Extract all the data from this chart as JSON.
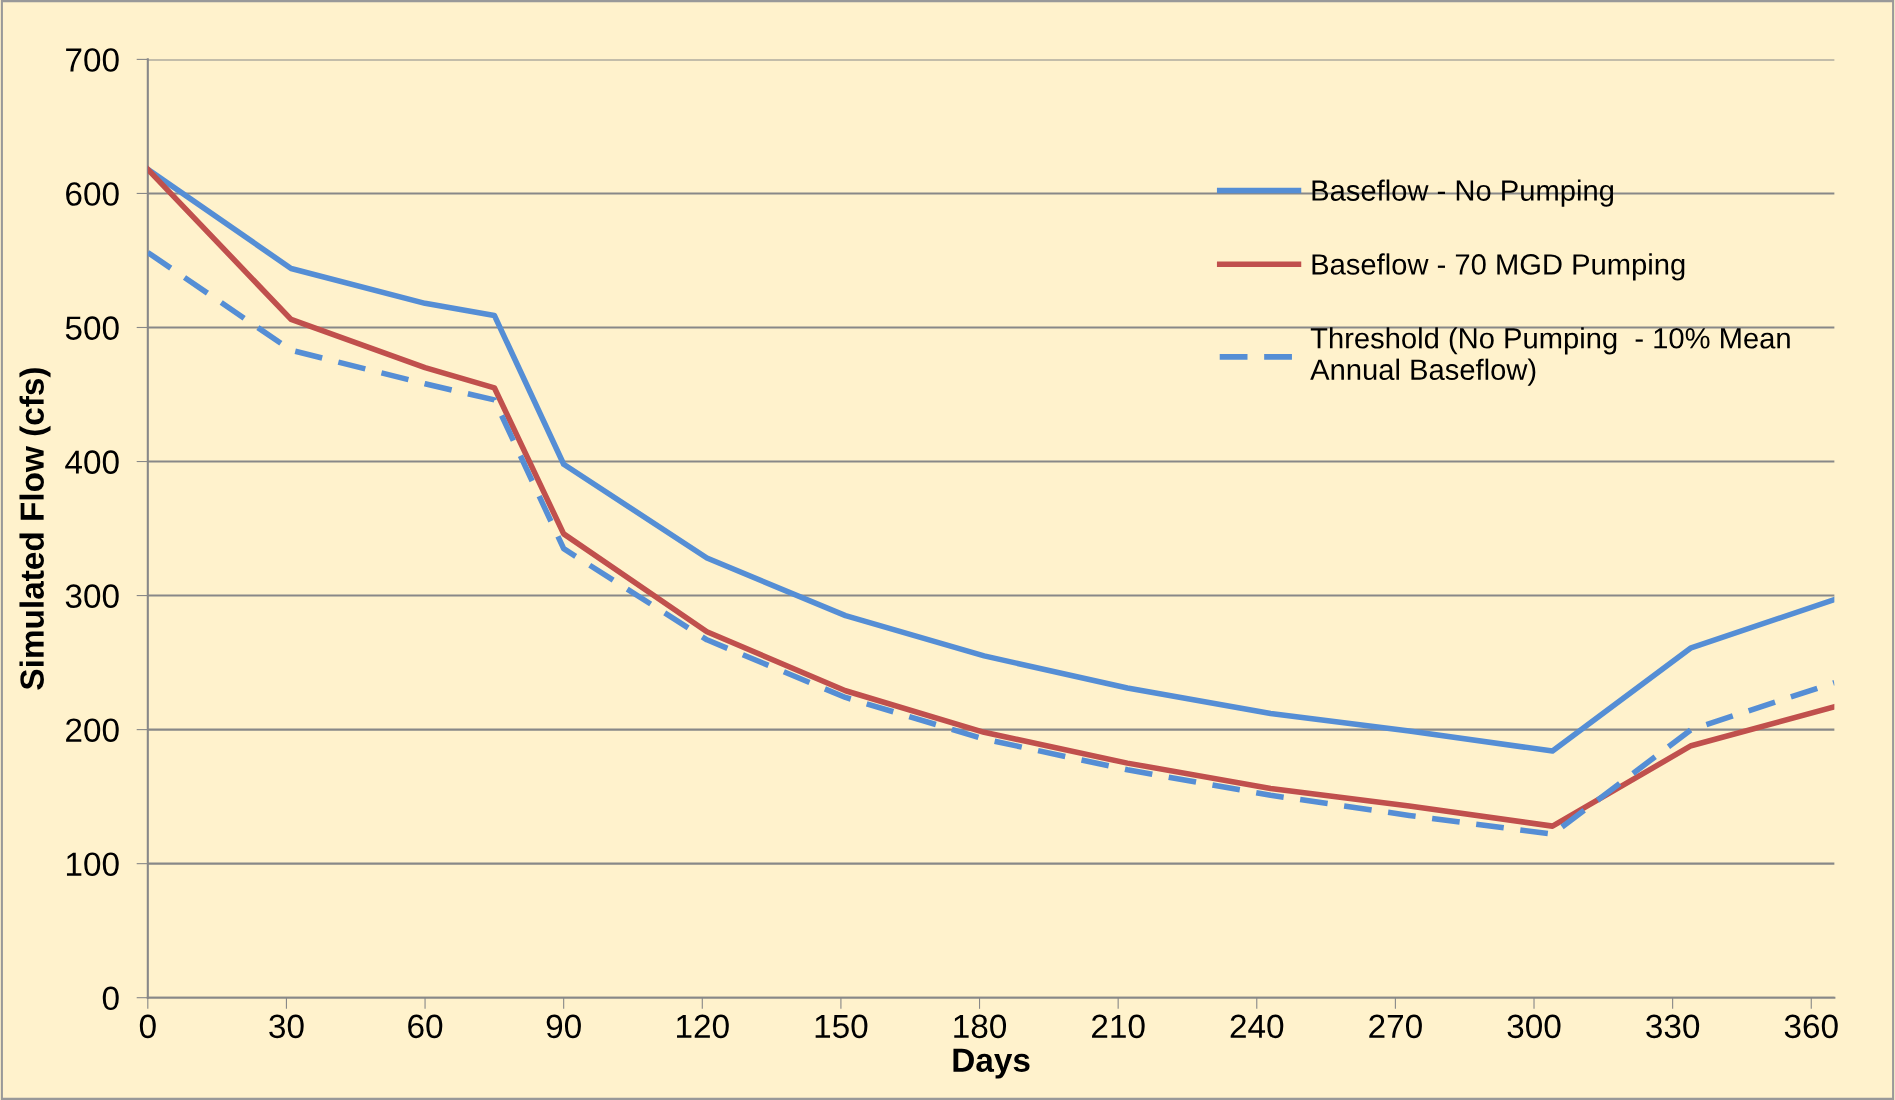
{
  "chart_data": {
    "type": "line",
    "xlabel": "Days",
    "ylabel": "Simulated Flow (cfs)",
    "x": [
      0,
      31,
      60,
      75,
      90,
      121,
      151,
      181,
      212,
      243,
      273,
      304,
      334,
      365
    ],
    "series": [
      {
        "name": "Baseflow - No Pumping",
        "color": "#558ed5",
        "line_style": "solid",
        "values": [
          618,
          544,
          518,
          509,
          398,
          328,
          285,
          255,
          231,
          212,
          199,
          184,
          261,
          297
        ]
      },
      {
        "name": "Baseflow - 70 MGD Pumping",
        "color": "#c0504d",
        "line_style": "solid",
        "values": [
          618,
          506,
          470,
          455,
          346,
          273,
          229,
          198,
          175,
          156,
          143,
          128,
          188,
          217
        ]
      },
      {
        "name": "Threshold (No Pumping  - 10% Mean\nAnnual Baseflow)",
        "color": "#558ed5",
        "line_style": "dashed",
        "values": [
          556,
          483,
          458,
          446,
          335,
          267,
          224,
          193,
          170,
          151,
          136,
          122,
          200,
          235
        ]
      }
    ],
    "xlim": [
      0,
      365
    ],
    "xticks": [
      0,
      30,
      60,
      90,
      120,
      150,
      180,
      210,
      240,
      270,
      300,
      330,
      360
    ],
    "ylim": [
      0,
      700
    ],
    "yticks": [
      0,
      100,
      200,
      300,
      400,
      500,
      600,
      700
    ],
    "grid": "y",
    "legend": "top right",
    "marker": "none"
  }
}
